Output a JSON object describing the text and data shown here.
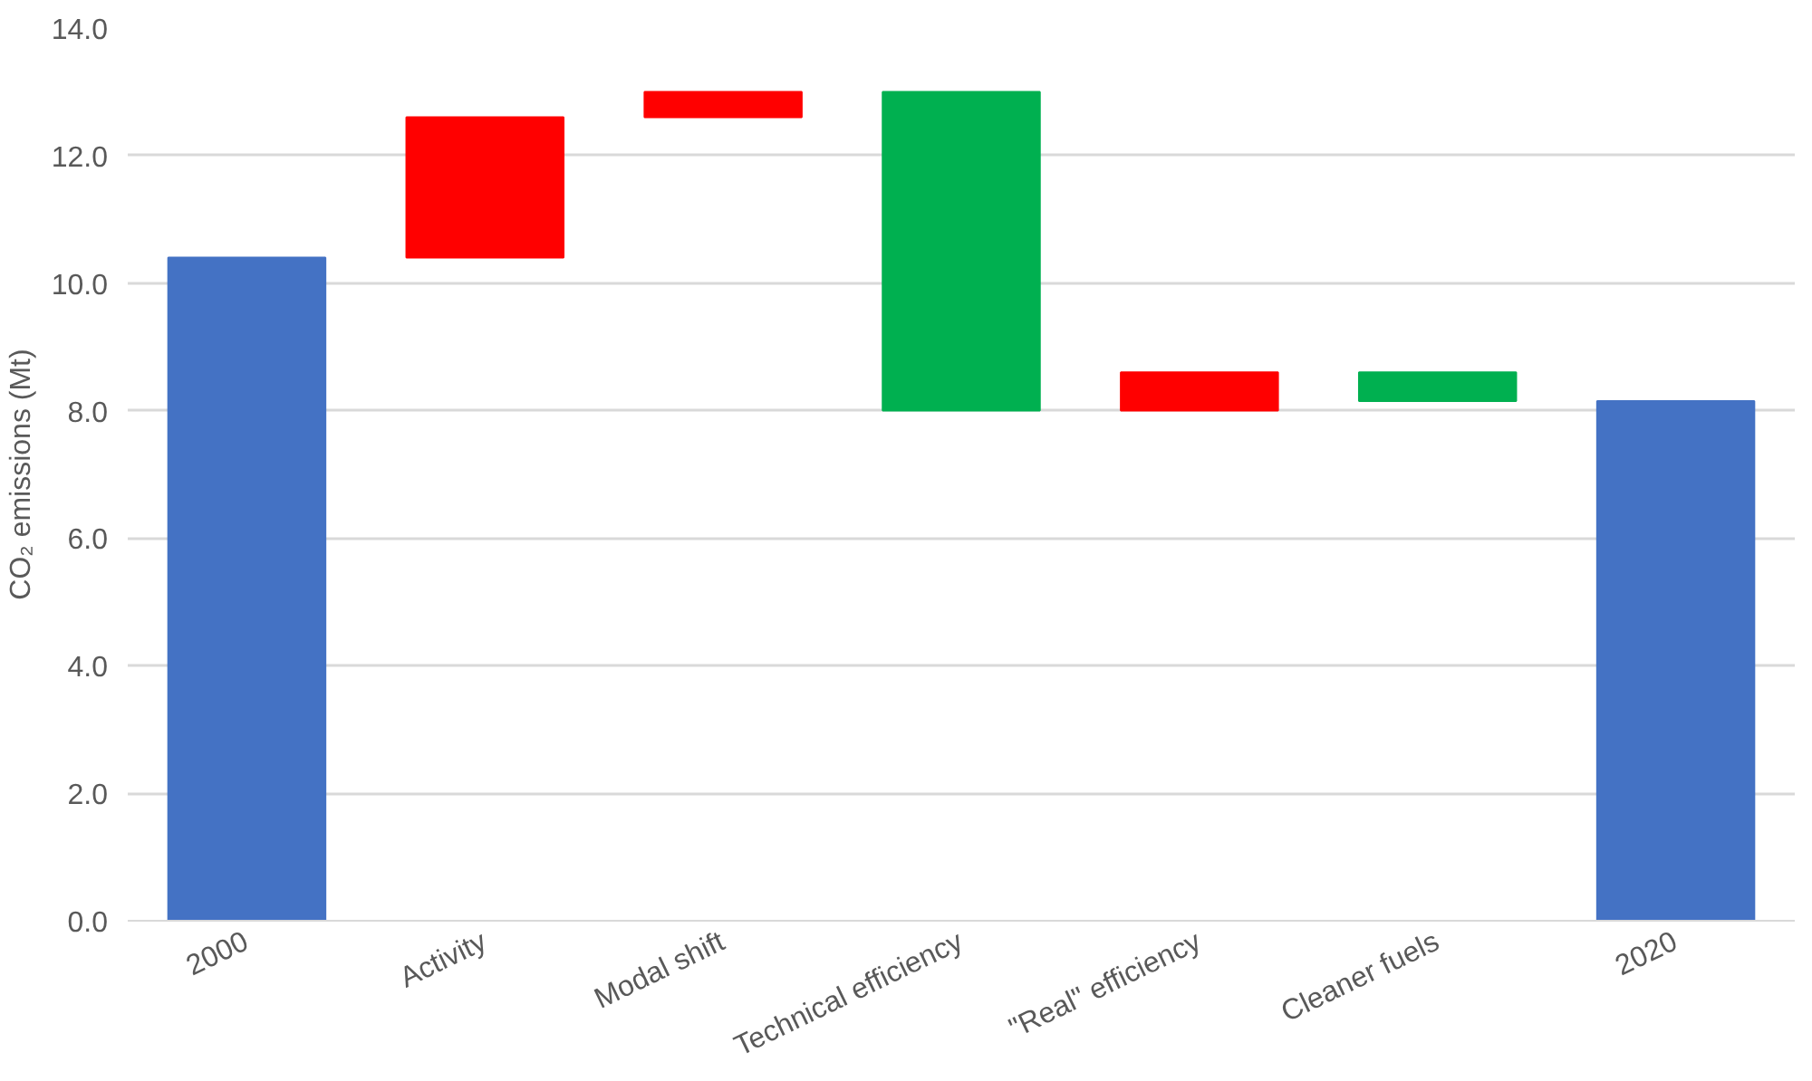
{
  "chart_data": {
    "type": "bar",
    "ylabel": "CO₂ emissions (Mt)",
    "categories": [
      "2000",
      "Activity",
      "Modal shift",
      "Technical efficiency",
      "\"Real\" efficiency",
      "Cleaner fuels",
      "2020"
    ],
    "base": [
      0,
      10.4,
      12.6,
      13.0,
      8.0,
      8.6,
      0
    ],
    "values": [
      10.4,
      2.2,
      0.4,
      -5.0,
      0.6,
      -0.45,
      8.15
    ],
    "colors": [
      "#4472c4",
      "#ff0000",
      "#ff0000",
      "#00b050",
      "#ff0000",
      "#00b050",
      "#4472c4"
    ],
    "ylim": [
      0,
      14
    ],
    "yticks": [
      {
        "value": 0,
        "label": "0.0"
      },
      {
        "value": 2,
        "label": "2.0"
      },
      {
        "value": 4,
        "label": "4.0"
      },
      {
        "value": 6,
        "label": "6.0"
      },
      {
        "value": 8,
        "label": "8.0"
      },
      {
        "value": 10,
        "label": "10.0"
      },
      {
        "value": 12,
        "label": "12.0"
      },
      {
        "value": 14,
        "label": "14.0"
      }
    ],
    "grid": "y"
  }
}
